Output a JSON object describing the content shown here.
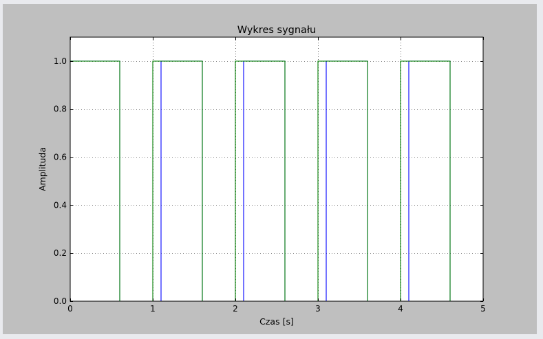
{
  "window": {
    "background": "#bfbfbf"
  },
  "chart_data": {
    "type": "line",
    "title": "Wykres sygnału",
    "xlabel": "Czas [s]",
    "ylabel": "Amplituda",
    "xlim": [
      0,
      5
    ],
    "ylim": [
      0,
      1.1
    ],
    "grid": true,
    "xticks": [
      0,
      1,
      2,
      3,
      4,
      5
    ],
    "xtick_labels": [
      "0",
      "1",
      "2",
      "3",
      "4",
      "5"
    ],
    "yticks": [
      0.0,
      0.2,
      0.4,
      0.6,
      0.8,
      1.0
    ],
    "ytick_labels": [
      "0.0",
      "0.2",
      "0.4",
      "0.6",
      "0.8",
      "1.0"
    ],
    "series": [
      {
        "name": "blue-square-wave",
        "color": "#0000ff",
        "step_x": [
          0,
          0.6,
          0.6,
          1.1,
          1.1,
          1.6,
          1.6,
          2.1,
          2.1,
          2.6,
          2.6,
          3.1,
          3.1,
          3.6,
          3.6,
          4.1,
          4.1,
          4.6,
          4.6,
          5.0
        ],
        "step_y": [
          1,
          1,
          0,
          0,
          1,
          1,
          0,
          0,
          1,
          1,
          0,
          0,
          1,
          1,
          0,
          0,
          1,
          1,
          0,
          0
        ]
      },
      {
        "name": "green-square-wave",
        "color": "#007f00",
        "step_x": [
          0,
          0.6,
          0.6,
          1.0,
          1.0,
          1.6,
          1.6,
          2.0,
          2.0,
          2.6,
          2.6,
          3.0,
          3.0,
          3.6,
          3.6,
          4.0,
          4.0,
          4.6,
          4.6,
          5.0
        ],
        "step_y": [
          1,
          1,
          0,
          0,
          1,
          1,
          0,
          0,
          1,
          1,
          0,
          0,
          1,
          1,
          0,
          0,
          1,
          1,
          0,
          0
        ]
      }
    ]
  }
}
